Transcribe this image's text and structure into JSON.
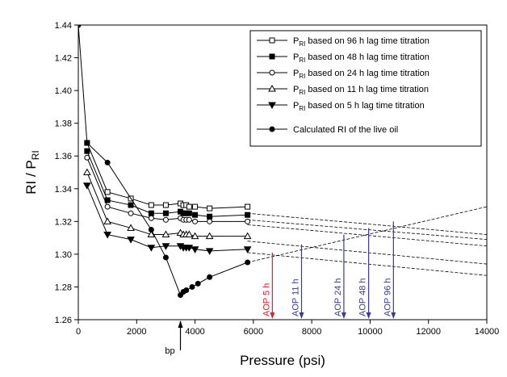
{
  "chart_data": {
    "type": "line",
    "xlabel": "Pressure (psi)",
    "ylabel": "RI / P",
    "ylabel_sub": "RI",
    "xlim": [
      0,
      14000
    ],
    "ylim": [
      1.26,
      1.44
    ],
    "xticks": [
      0,
      2000,
      4000,
      6000,
      8000,
      10000,
      12000,
      14000
    ],
    "yticks": [
      1.26,
      1.28,
      1.3,
      1.32,
      1.34,
      1.36,
      1.38,
      1.4,
      1.42,
      1.44
    ],
    "x_tick_labels": [
      "0",
      "2000",
      "4000",
      "6000",
      "8000",
      "10000",
      "12000",
      "14000"
    ],
    "y_tick_labels": [
      "1.26",
      "1.28",
      "1.30",
      "1.32",
      "1.34",
      "1.36",
      "1.38",
      "1.40",
      "1.42",
      "1.44"
    ],
    "grid": false,
    "legend_position": "top-right",
    "series": [
      {
        "main": "P",
        "sub": "RI",
        "rest": " based on 96 h lag time titration",
        "marker": "square-open",
        "x": [
          300,
          1000,
          1800,
          2500,
          3000,
          3500,
          3600,
          3700,
          3800,
          4000,
          4500,
          5800
        ],
        "y": [
          1.368,
          1.338,
          1.334,
          1.33,
          1.33,
          1.331,
          1.33,
          1.33,
          1.329,
          1.329,
          1.328,
          1.329
        ],
        "trend_x": [
          5800,
          14000
        ],
        "trend_y": [
          1.325,
          1.312
        ]
      },
      {
        "main": "P",
        "sub": "RI",
        "rest": " based on 48 h lag time titration",
        "marker": "square-filled",
        "x": [
          300,
          1000,
          1800,
          2500,
          3000,
          3500,
          3600,
          3700,
          3800,
          4000,
          4500,
          5800
        ],
        "y": [
          1.363,
          1.333,
          1.33,
          1.325,
          1.325,
          1.326,
          1.325,
          1.325,
          1.325,
          1.324,
          1.323,
          1.324
        ],
        "trend_x": [
          5800,
          14000
        ],
        "trend_y": [
          1.321,
          1.309
        ]
      },
      {
        "main": "P",
        "sub": "RI",
        "rest": " based on 24 h lag time titration",
        "marker": "circle-open",
        "x": [
          300,
          1000,
          1800,
          2500,
          3000,
          3500,
          3600,
          3700,
          3800,
          4000,
          4500,
          5800
        ],
        "y": [
          1.359,
          1.329,
          1.325,
          1.322,
          1.321,
          1.322,
          1.321,
          1.321,
          1.321,
          1.32,
          1.32,
          1.32
        ],
        "trend_x": [
          5800,
          14000
        ],
        "trend_y": [
          1.318,
          1.305
        ]
      },
      {
        "main": "P",
        "sub": "RI",
        "rest": " based on 11 h lag time titration",
        "marker": "triangle-open",
        "x": [
          300,
          1000,
          1800,
          2500,
          3000,
          3500,
          3600,
          3700,
          3800,
          4000,
          4500,
          5800
        ],
        "y": [
          1.35,
          1.32,
          1.316,
          1.312,
          1.312,
          1.313,
          1.312,
          1.312,
          1.312,
          1.311,
          1.311,
          1.311
        ],
        "trend_x": [
          5800,
          14000
        ],
        "trend_y": [
          1.308,
          1.294
        ]
      },
      {
        "main": "P",
        "sub": "RI",
        "rest": " based on 5 h lag time titration",
        "marker": "triangle-down-filled",
        "x": [
          300,
          1000,
          1800,
          2500,
          3000,
          3500,
          3600,
          3700,
          3800,
          4000,
          4500,
          5800
        ],
        "y": [
          1.342,
          1.312,
          1.309,
          1.304,
          1.305,
          1.305,
          1.304,
          1.304,
          1.304,
          1.303,
          1.302,
          1.303
        ],
        "trend_x": [
          5800,
          14000
        ],
        "trend_y": [
          1.301,
          1.287
        ]
      },
      {
        "main": "Calculated RI of the live oil",
        "sub": "",
        "rest": "",
        "marker": "circle-filled",
        "x": [
          0,
          300,
          1000,
          2500,
          3000,
          3500,
          3600,
          3700,
          3900,
          4100,
          4500,
          5800
        ],
        "y": [
          1.44,
          1.368,
          1.356,
          1.315,
          1.298,
          1.275,
          1.277,
          1.278,
          1.28,
          1.282,
          1.286,
          1.295
        ],
        "trend_x": [
          5800,
          14000
        ],
        "trend_y": [
          1.295,
          1.329
        ]
      }
    ],
    "annotations": [
      {
        "label": "bp",
        "x": 3500,
        "color": "#000000",
        "kind": "below-axis"
      },
      {
        "label": "AOP 5 h",
        "x": 6650,
        "y_top": 1.301,
        "color": "#e01e2d"
      },
      {
        "label": "AOP 11 h",
        "x": 7650,
        "y_top": 1.306,
        "color": "#3a3a9a"
      },
      {
        "label": "AOP 24 h",
        "x": 9100,
        "y_top": 1.312,
        "color": "#3a3a9a"
      },
      {
        "label": "AOP 48 h",
        "x": 9950,
        "y_top": 1.316,
        "color": "#3a3a9a"
      },
      {
        "label": "AOP 96 h",
        "x": 10800,
        "y_top": 1.32,
        "color": "#3a3a9a"
      }
    ]
  }
}
